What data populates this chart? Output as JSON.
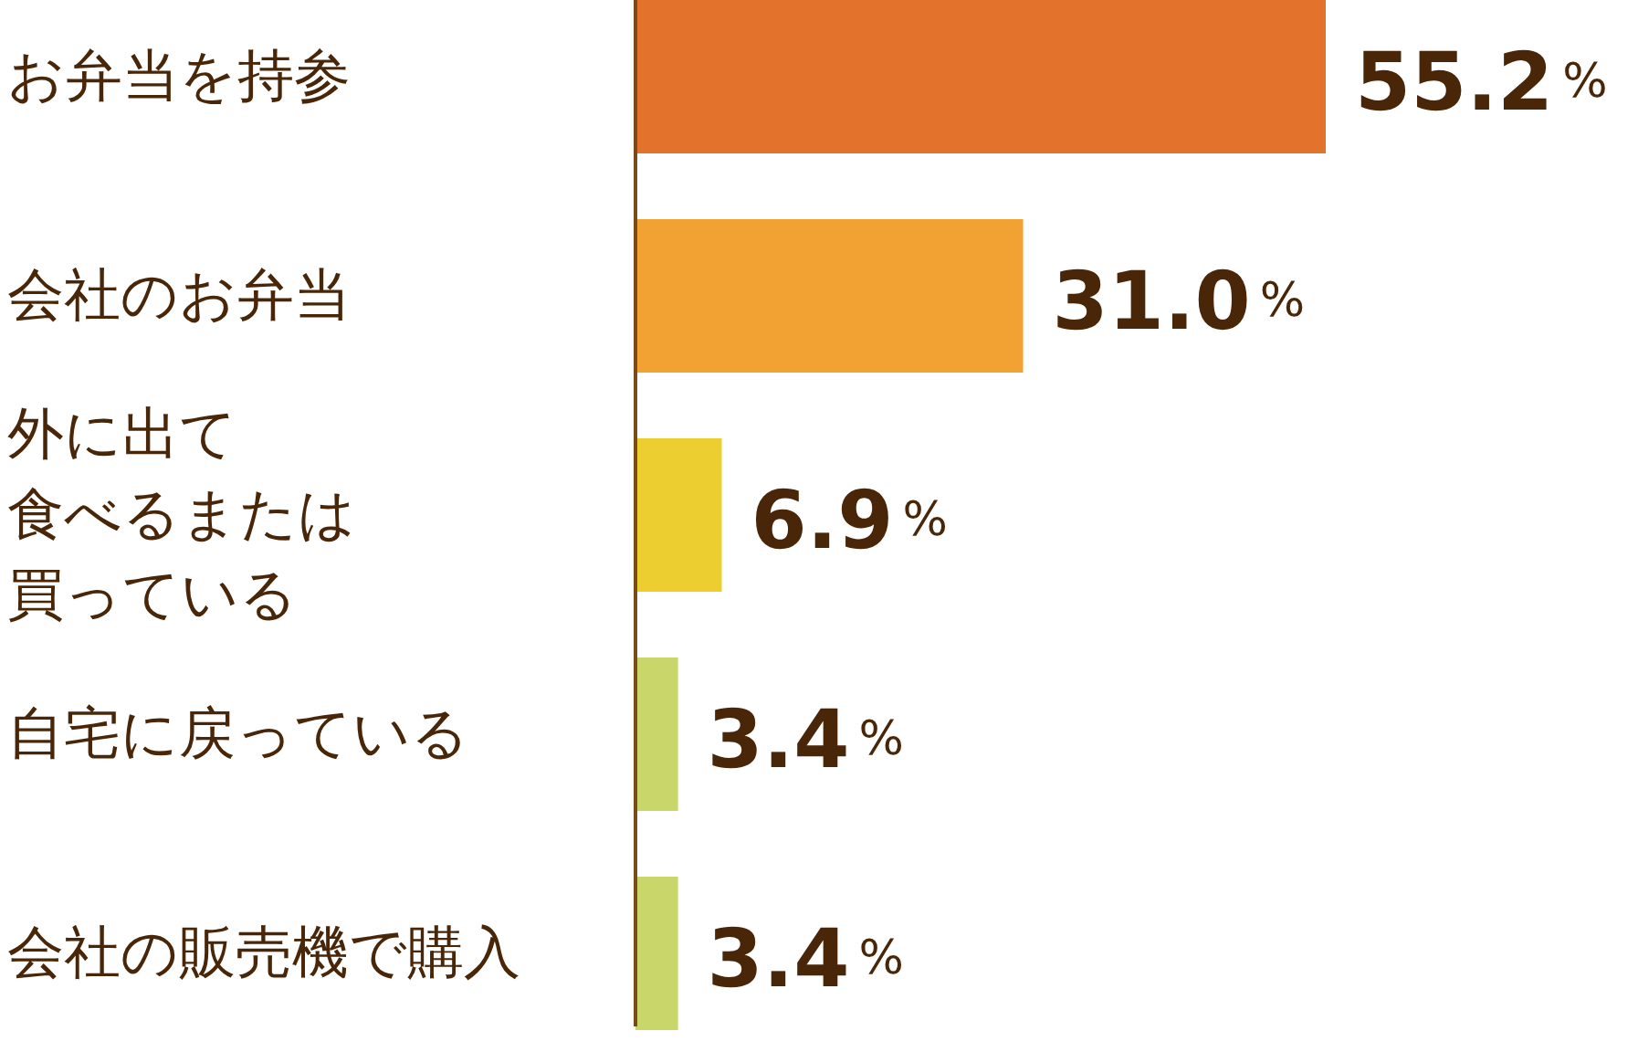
{
  "chart_data": {
    "type": "bar",
    "orientation": "horizontal",
    "categories": [
      "お弁当を持参",
      "会社のお弁当",
      "外に出て食べるまたは買っている",
      "自宅に戻っている",
      "会社の販売機で購入"
    ],
    "values": [
      55.2,
      31.0,
      6.9,
      3.4,
      3.4
    ],
    "colors": [
      "#e3722d",
      "#f2a233",
      "#ecce30",
      "#c9d66a",
      "#c9d66a"
    ],
    "value_labels": [
      "55.2%",
      "31.0%",
      "6.9%",
      "3.4%",
      "3.4%"
    ]
  }
}
